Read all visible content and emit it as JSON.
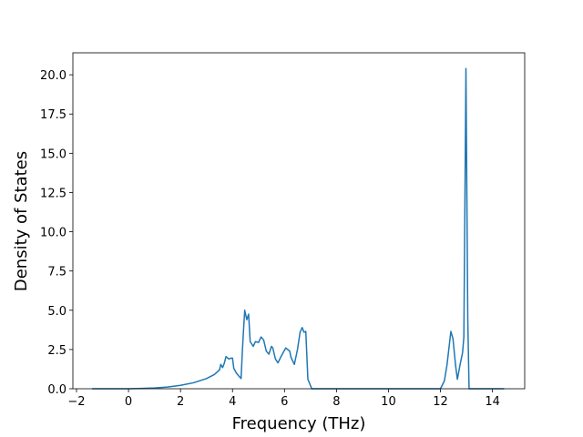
{
  "chart_data": {
    "type": "line",
    "xlabel": "Frequency (THz)",
    "ylabel": "Density of States",
    "color": "#1f77b4",
    "x": [
      -1.4,
      0,
      0.5,
      1,
      1.5,
      2,
      2.5,
      3,
      3.3,
      3.5,
      3.55,
      3.62,
      3.68,
      3.75,
      3.85,
      3.95,
      4.0,
      4.05,
      4.15,
      4.25,
      4.33,
      4.38,
      4.42,
      4.47,
      4.55,
      4.62,
      4.68,
      4.8,
      4.88,
      5.0,
      5.1,
      5.2,
      5.3,
      5.4,
      5.5,
      5.55,
      5.65,
      5.75,
      5.85,
      6.05,
      6.2,
      6.25,
      6.38,
      6.5,
      6.6,
      6.68,
      6.75,
      6.82,
      6.9,
      7.05,
      12.0,
      12.15,
      12.25,
      12.4,
      12.48,
      12.58,
      12.65,
      12.75,
      12.85,
      12.9,
      12.98,
      13.05,
      13.1,
      14.45
    ],
    "values": [
      0,
      0,
      0.02,
      0.05,
      0.11,
      0.22,
      0.38,
      0.65,
      0.9,
      1.2,
      1.55,
      1.35,
      1.6,
      2.05,
      1.9,
      1.95,
      1.95,
      1.3,
      1.0,
      0.8,
      0.65,
      2.4,
      3.6,
      5.0,
      4.4,
      4.75,
      3.0,
      2.7,
      3.0,
      2.95,
      3.3,
      3.1,
      2.4,
      2.2,
      2.7,
      2.6,
      1.9,
      1.65,
      2.0,
      2.6,
      2.4,
      2.0,
      1.55,
      2.5,
      3.6,
      3.9,
      3.6,
      3.65,
      0.6,
      0,
      0,
      0.5,
      1.5,
      3.65,
      3.2,
      1.5,
      0.6,
      1.5,
      2.3,
      3.3,
      20.4,
      4.5,
      0,
      0
    ],
    "xlim": [
      -2.14,
      15.24
    ],
    "ylim": [
      0,
      21.4
    ],
    "xticks": [
      {
        "value": -2,
        "label": "−2"
      },
      0,
      2,
      4,
      6,
      8,
      10,
      12,
      14
    ],
    "yticks": [
      {
        "value": 0,
        "label": "0.0"
      },
      {
        "value": 2.5,
        "label": "2.5"
      },
      {
        "value": 5,
        "label": "5.0"
      },
      {
        "value": 7.5,
        "label": "7.5"
      },
      {
        "value": 10,
        "label": "10.0"
      },
      {
        "value": 12.5,
        "label": "12.5"
      },
      {
        "value": 15,
        "label": "15.0"
      },
      {
        "value": 17.5,
        "label": "17.5"
      },
      {
        "value": 20,
        "label": "20.0"
      }
    ]
  }
}
